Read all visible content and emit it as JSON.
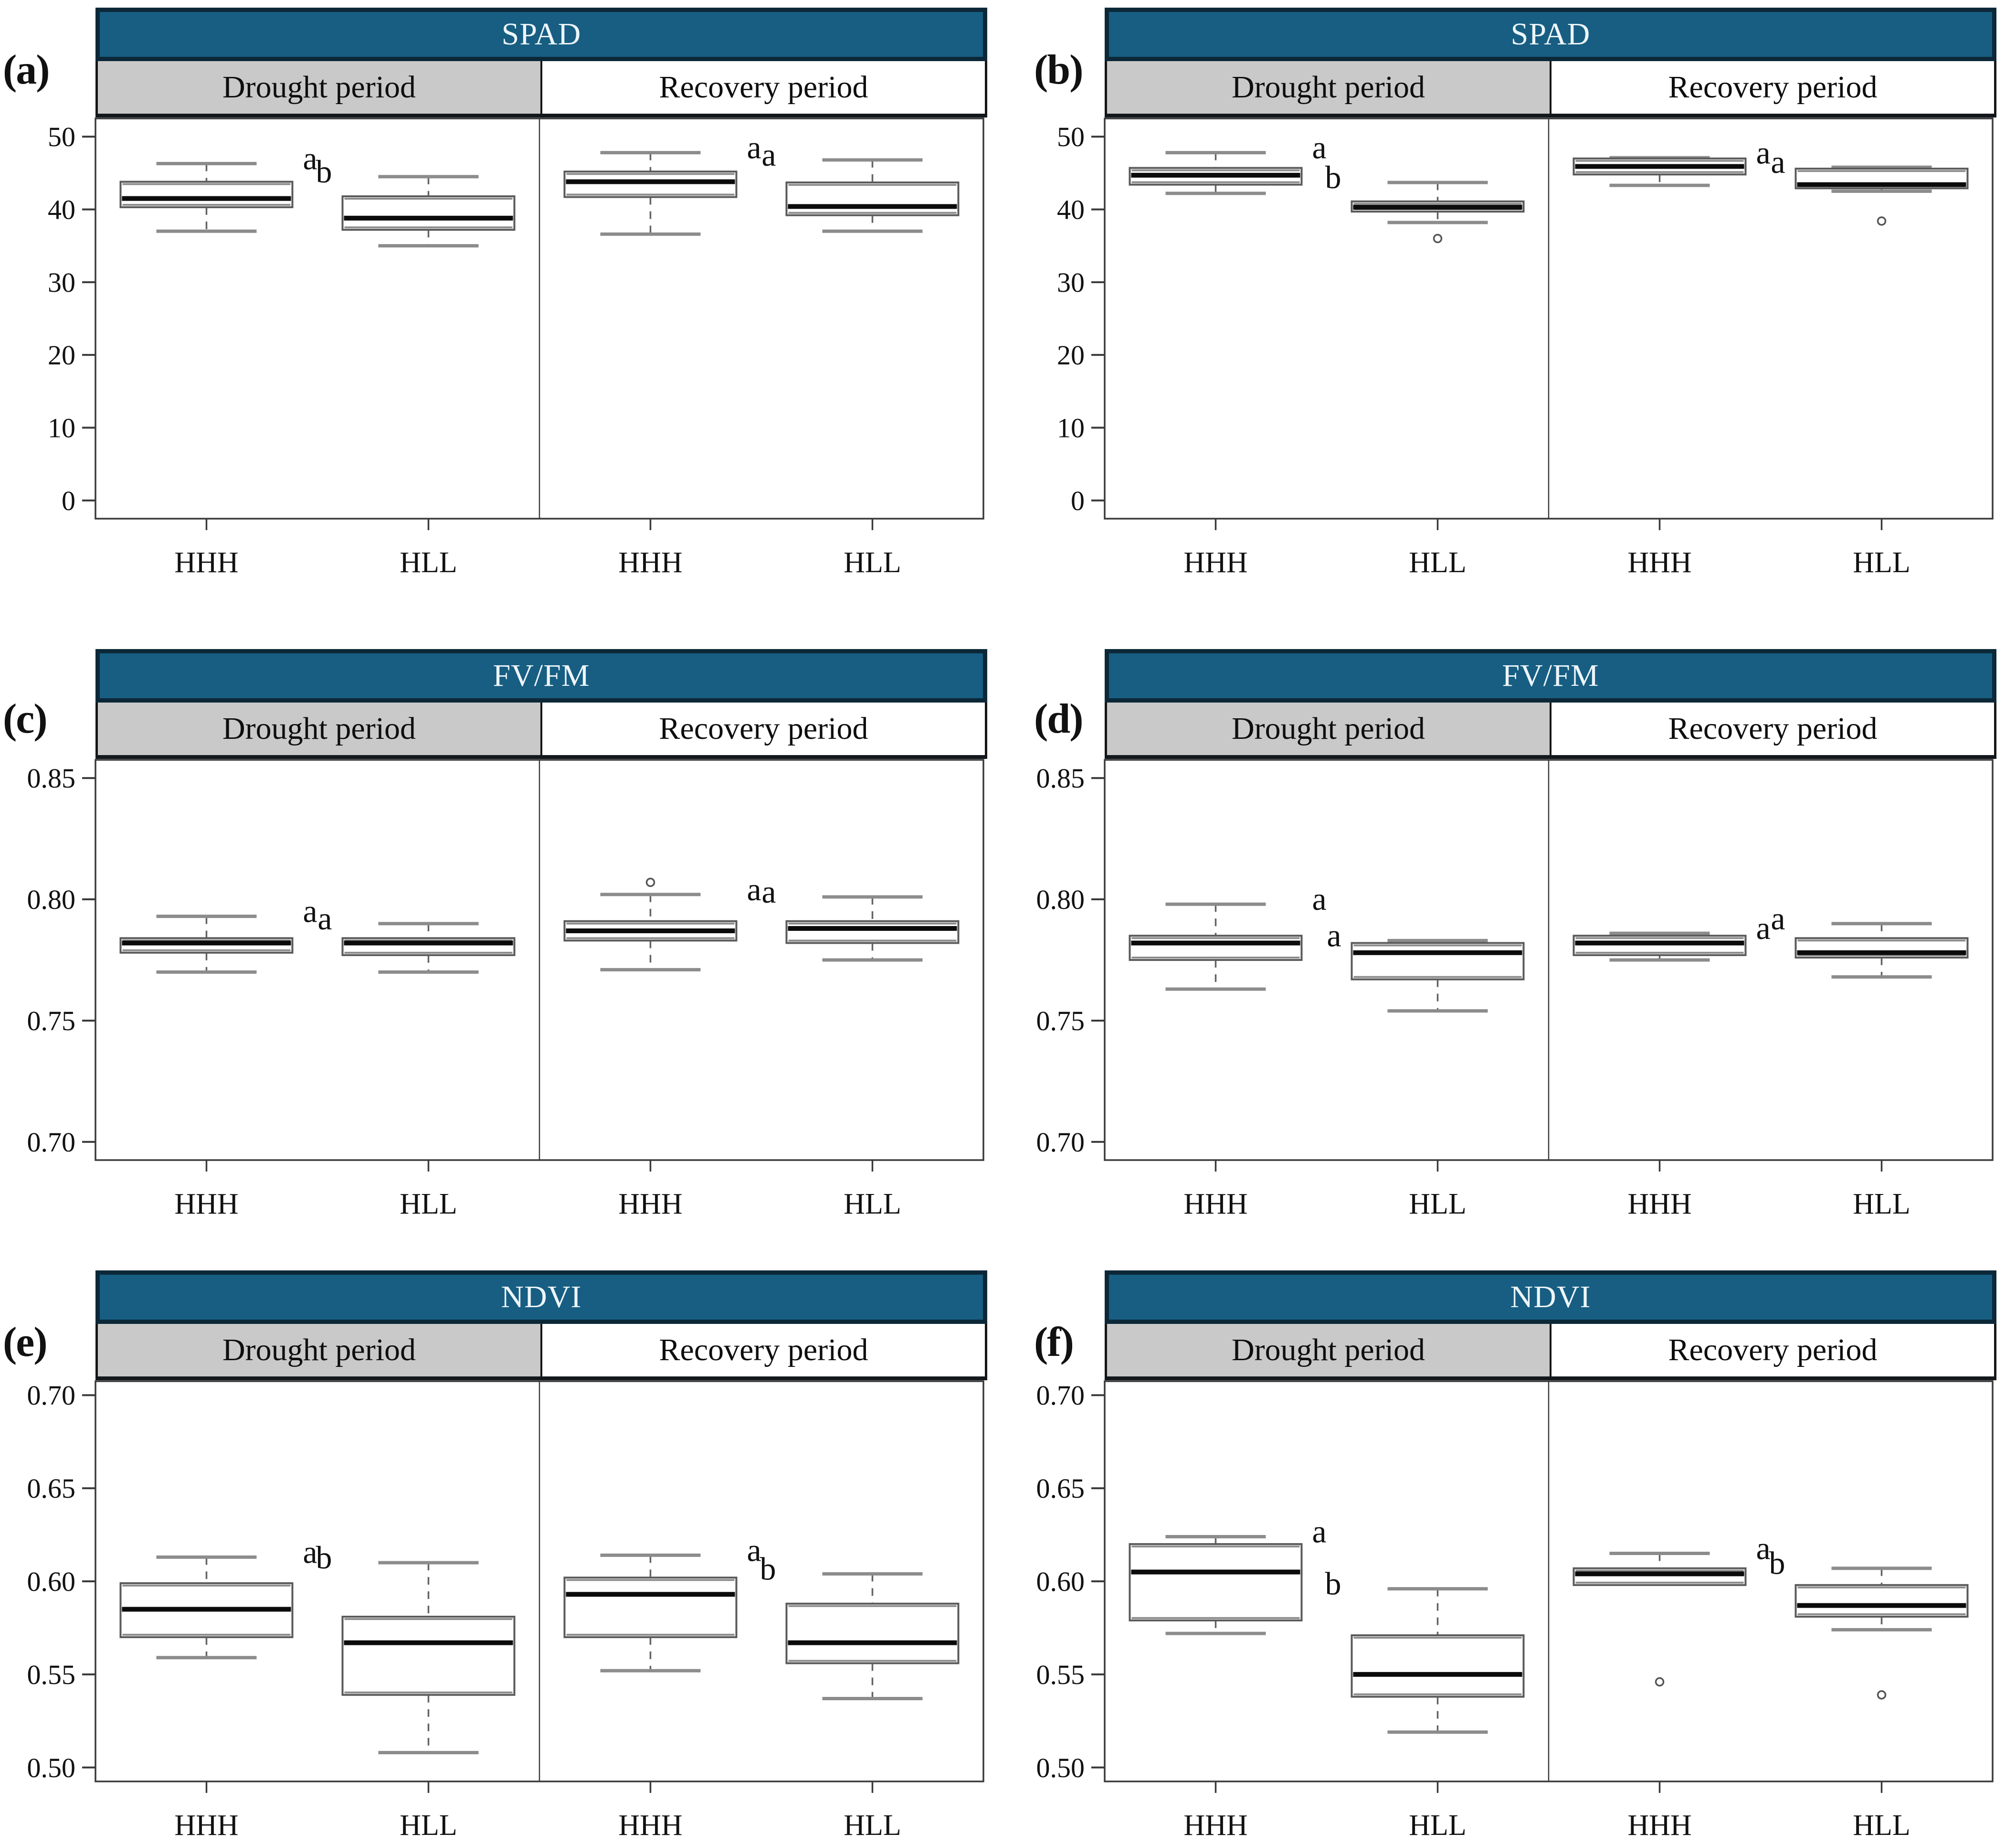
{
  "colors": {
    "header_teal": "#175E82",
    "header_border": "#0C2838",
    "header_text": "#EDF5FA",
    "subheader_gray": "#C9C9C9",
    "subheader_white": "#FFFFFF",
    "frame": "#3A3A3A",
    "box_border": "#5A5A5A",
    "box_edge_gray": "#8C8C8C",
    "median_black": "#0B0B0B",
    "whisker_gray": "#636363",
    "cap_gray": "#8C8C8C",
    "outlier_gray": "#555555",
    "text_black": "#111111"
  },
  "chart_data": [
    {
      "panel_label": "(a)",
      "type": "boxplot",
      "title": "SPAD",
      "column_headers": [
        "Drought period",
        "Recovery period"
      ],
      "x_categories": [
        "HHH",
        "HLL",
        "HHH",
        "HLL"
      ],
      "ylim": [
        -2.5,
        52.5
      ],
      "y_ticks": [
        {
          "v": 0,
          "label": "0"
        },
        {
          "v": 10,
          "label": "10"
        },
        {
          "v": 20,
          "label": "20"
        },
        {
          "v": 30,
          "label": "30"
        },
        {
          "v": 40,
          "label": "40"
        },
        {
          "v": 50,
          "label": "50"
        }
      ],
      "series": [
        {
          "period": "Drought period",
          "group": "HHH",
          "whisker_low": 37.0,
          "q1": 40.3,
          "median": 41.5,
          "q3": 43.8,
          "whisker_high": 46.3,
          "outliers": [],
          "sig_letter": "a"
        },
        {
          "period": "Drought period",
          "group": "HLL",
          "whisker_low": 35.0,
          "q1": 37.2,
          "median": 38.8,
          "q3": 41.8,
          "whisker_high": 44.5,
          "outliers": [],
          "sig_letter": "b"
        },
        {
          "period": "Recovery period",
          "group": "HHH",
          "whisker_low": 36.6,
          "q1": 41.7,
          "median": 43.8,
          "q3": 45.2,
          "whisker_high": 47.8,
          "outliers": [],
          "sig_letter": "a"
        },
        {
          "period": "Recovery period",
          "group": "HLL",
          "whisker_low": 37.0,
          "q1": 39.2,
          "median": 40.4,
          "q3": 43.7,
          "whisker_high": 46.8,
          "outliers": [],
          "sig_letter": "a"
        }
      ]
    },
    {
      "panel_label": "(b)",
      "type": "boxplot",
      "title": "SPAD",
      "column_headers": [
        "Drought period",
        "Recovery period"
      ],
      "x_categories": [
        "HHH",
        "HLL",
        "HHH",
        "HLL"
      ],
      "ylim": [
        -2.5,
        52.5
      ],
      "y_ticks": [
        {
          "v": 0,
          "label": "0"
        },
        {
          "v": 10,
          "label": "10"
        },
        {
          "v": 20,
          "label": "20"
        },
        {
          "v": 30,
          "label": "30"
        },
        {
          "v": 40,
          "label": "40"
        },
        {
          "v": 50,
          "label": "50"
        }
      ],
      "series": [
        {
          "period": "Drought period",
          "group": "HHH",
          "whisker_low": 42.2,
          "q1": 43.4,
          "median": 44.7,
          "q3": 45.7,
          "whisker_high": 47.8,
          "outliers": [],
          "sig_letter": "a"
        },
        {
          "period": "Drought period",
          "group": "HLL",
          "whisker_low": 38.2,
          "q1": 39.7,
          "median": 40.3,
          "q3": 41.1,
          "whisker_high": 43.7,
          "outliers": [
            36.0
          ],
          "sig_letter": "b"
        },
        {
          "period": "Recovery period",
          "group": "HHH",
          "whisker_low": 43.3,
          "q1": 44.8,
          "median": 45.9,
          "q3": 47.0,
          "whisker_high": 47.1,
          "outliers": [],
          "sig_letter": "a"
        },
        {
          "period": "Recovery period",
          "group": "HLL",
          "whisker_low": 42.5,
          "q1": 42.9,
          "median": 43.4,
          "q3": 45.6,
          "whisker_high": 45.8,
          "outliers": [
            38.4
          ],
          "sig_letter": "a"
        }
      ]
    },
    {
      "panel_label": "(c)",
      "type": "boxplot",
      "title": "FV/FM",
      "column_headers": [
        "Drought period",
        "Recovery period"
      ],
      "x_categories": [
        "HHH",
        "HLL",
        "HHH",
        "HLL"
      ],
      "ylim": [
        0.6925,
        0.8575
      ],
      "y_ticks": [
        {
          "v": 0.7,
          "label": "0.70"
        },
        {
          "v": 0.75,
          "label": "0.75"
        },
        {
          "v": 0.8,
          "label": "0.80"
        },
        {
          "v": 0.85,
          "label": "0.85"
        }
      ],
      "series": [
        {
          "period": "Drought period",
          "group": "HHH",
          "whisker_low": 0.77,
          "q1": 0.778,
          "median": 0.782,
          "q3": 0.784,
          "whisker_high": 0.793,
          "outliers": [],
          "sig_letter": "a"
        },
        {
          "period": "Drought period",
          "group": "HLL",
          "whisker_low": 0.77,
          "q1": 0.777,
          "median": 0.782,
          "q3": 0.784,
          "whisker_high": 0.79,
          "outliers": [],
          "sig_letter": "a"
        },
        {
          "period": "Recovery period",
          "group": "HHH",
          "whisker_low": 0.771,
          "q1": 0.783,
          "median": 0.787,
          "q3": 0.791,
          "whisker_high": 0.802,
          "outliers": [
            0.807
          ],
          "sig_letter": "a"
        },
        {
          "period": "Recovery period",
          "group": "HLL",
          "whisker_low": 0.775,
          "q1": 0.782,
          "median": 0.788,
          "q3": 0.791,
          "whisker_high": 0.801,
          "outliers": [],
          "sig_letter": "a"
        }
      ]
    },
    {
      "panel_label": "(d)",
      "type": "boxplot",
      "title": "FV/FM",
      "column_headers": [
        "Drought period",
        "Recovery period"
      ],
      "x_categories": [
        "HHH",
        "HLL",
        "HHH",
        "HLL"
      ],
      "ylim": [
        0.6925,
        0.8575
      ],
      "y_ticks": [
        {
          "v": 0.7,
          "label": "0.70"
        },
        {
          "v": 0.75,
          "label": "0.75"
        },
        {
          "v": 0.8,
          "label": "0.80"
        },
        {
          "v": 0.85,
          "label": "0.85"
        }
      ],
      "series": [
        {
          "period": "Drought period",
          "group": "HHH",
          "whisker_low": 0.763,
          "q1": 0.775,
          "median": 0.782,
          "q3": 0.785,
          "whisker_high": 0.798,
          "outliers": [],
          "sig_letter": "a"
        },
        {
          "period": "Drought period",
          "group": "HLL",
          "whisker_low": 0.754,
          "q1": 0.767,
          "median": 0.778,
          "q3": 0.782,
          "whisker_high": 0.783,
          "outliers": [],
          "sig_letter": "a"
        },
        {
          "period": "Recovery period",
          "group": "HHH",
          "whisker_low": 0.775,
          "q1": 0.777,
          "median": 0.782,
          "q3": 0.785,
          "whisker_high": 0.786,
          "outliers": [],
          "sig_letter": "a"
        },
        {
          "period": "Recovery period",
          "group": "HLL",
          "whisker_low": 0.768,
          "q1": 0.776,
          "median": 0.778,
          "q3": 0.784,
          "whisker_high": 0.79,
          "outliers": [],
          "sig_letter": "a"
        }
      ]
    },
    {
      "panel_label": "(e)",
      "type": "boxplot",
      "title": "NDVI",
      "column_headers": [
        "Drought period",
        "Recovery period"
      ],
      "x_categories": [
        "HHH",
        "HLL",
        "HHH",
        "HLL"
      ],
      "ylim": [
        0.4925,
        0.7075
      ],
      "y_ticks": [
        {
          "v": 0.5,
          "label": "0.50"
        },
        {
          "v": 0.55,
          "label": "0.55"
        },
        {
          "v": 0.6,
          "label": "0.60"
        },
        {
          "v": 0.65,
          "label": "0.65"
        },
        {
          "v": 0.7,
          "label": "0.70"
        }
      ],
      "series": [
        {
          "period": "Drought period",
          "group": "HHH",
          "whisker_low": 0.559,
          "q1": 0.57,
          "median": 0.585,
          "q3": 0.599,
          "whisker_high": 0.613,
          "outliers": [],
          "sig_letter": "a"
        },
        {
          "period": "Drought period",
          "group": "HLL",
          "whisker_low": 0.508,
          "q1": 0.539,
          "median": 0.567,
          "q3": 0.581,
          "whisker_high": 0.61,
          "outliers": [],
          "sig_letter": "b"
        },
        {
          "period": "Recovery period",
          "group": "HHH",
          "whisker_low": 0.552,
          "q1": 0.57,
          "median": 0.593,
          "q3": 0.602,
          "whisker_high": 0.614,
          "outliers": [],
          "sig_letter": "a"
        },
        {
          "period": "Recovery period",
          "group": "HLL",
          "whisker_low": 0.537,
          "q1": 0.556,
          "median": 0.567,
          "q3": 0.588,
          "whisker_high": 0.604,
          "outliers": [],
          "sig_letter": "b"
        }
      ]
    },
    {
      "panel_label": "(f)",
      "type": "boxplot",
      "title": "NDVI",
      "column_headers": [
        "Drought period",
        "Recovery period"
      ],
      "x_categories": [
        "HHH",
        "HLL",
        "HHH",
        "HLL"
      ],
      "ylim": [
        0.4925,
        0.7075
      ],
      "y_ticks": [
        {
          "v": 0.5,
          "label": "0.50"
        },
        {
          "v": 0.55,
          "label": "0.55"
        },
        {
          "v": 0.6,
          "label": "0.60"
        },
        {
          "v": 0.65,
          "label": "0.65"
        },
        {
          "v": 0.7,
          "label": "0.70"
        }
      ],
      "series": [
        {
          "period": "Drought period",
          "group": "HHH",
          "whisker_low": 0.572,
          "q1": 0.579,
          "median": 0.605,
          "q3": 0.62,
          "whisker_high": 0.624,
          "outliers": [],
          "sig_letter": "a"
        },
        {
          "period": "Drought period",
          "group": "HLL",
          "whisker_low": 0.519,
          "q1": 0.538,
          "median": 0.55,
          "q3": 0.571,
          "whisker_high": 0.596,
          "outliers": [],
          "sig_letter": "b"
        },
        {
          "period": "Recovery period",
          "group": "HHH",
          "whisker_low": 0.598,
          "q1": 0.598,
          "median": 0.604,
          "q3": 0.607,
          "whisker_high": 0.615,
          "outliers": [
            0.546
          ],
          "sig_letter": "a"
        },
        {
          "period": "Recovery period",
          "group": "HLL",
          "whisker_low": 0.574,
          "q1": 0.581,
          "median": 0.587,
          "q3": 0.598,
          "whisker_high": 0.607,
          "outliers": [
            0.539
          ],
          "sig_letter": "b"
        }
      ]
    }
  ]
}
